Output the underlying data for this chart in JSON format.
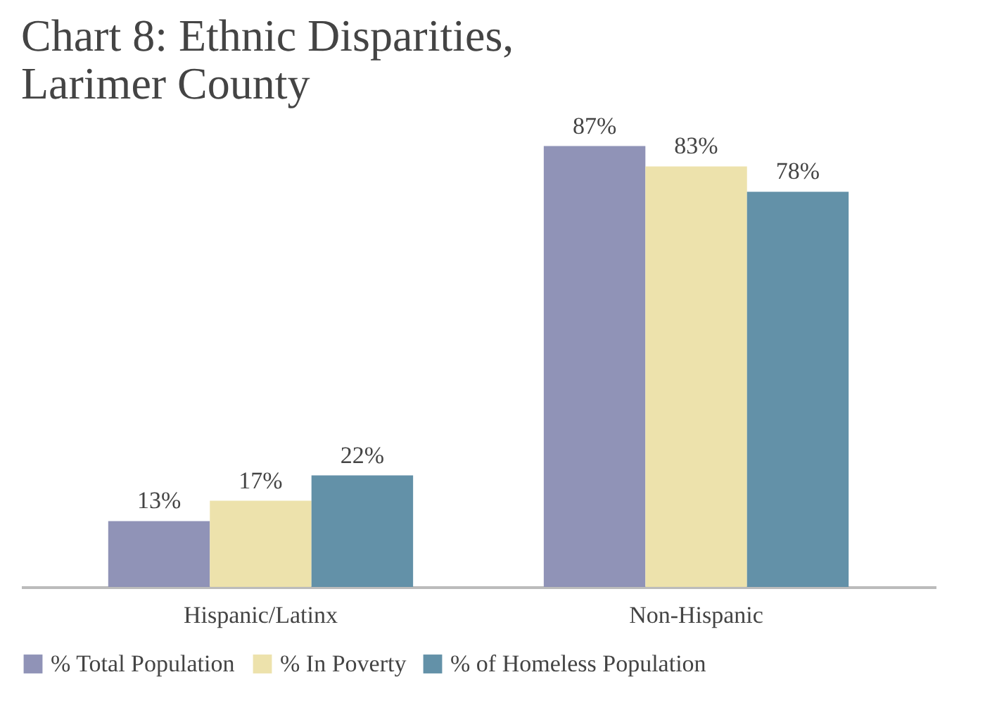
{
  "chart_data": {
    "type": "bar",
    "title": [
      "Chart 8: Ethnic Disparities,",
      "Larimer County"
    ],
    "categories": [
      "Hispanic/Latinx",
      "Non-Hispanic"
    ],
    "series": [
      {
        "name": "% Total Population",
        "color": "#8a8db3",
        "values": [
          13,
          87
        ],
        "value_labels": [
          "13%",
          "87%"
        ]
      },
      {
        "name": "% In Poverty",
        "color": "#ece0a8",
        "values": [
          17,
          83
        ],
        "value_labels": [
          "17%",
          "83%"
        ]
      },
      {
        "name": "% of Homeless Population",
        "color": "#5b8ba3",
        "values": [
          22,
          78
        ],
        "value_labels": [
          "22%",
          "78%"
        ]
      }
    ],
    "legend": "bottom",
    "grid": false,
    "tick_labels": "x"
  }
}
